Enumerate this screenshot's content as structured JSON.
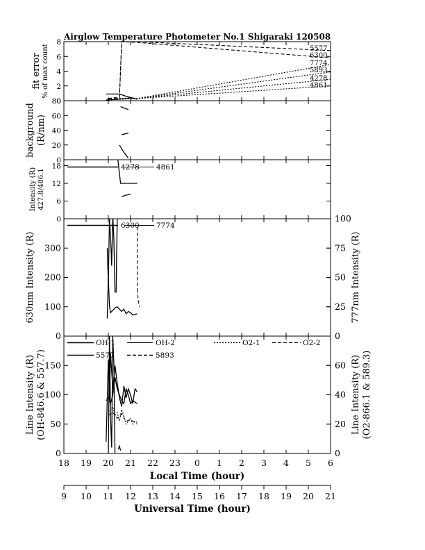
{
  "title": "Airglow Temperature Photometer No.1   Shigaraki   120508",
  "x_axes": {
    "local": {
      "label": "Local Time (hour)",
      "ticks": [
        "18",
        "19",
        "20",
        "21",
        "22",
        "23",
        "0",
        "1",
        "2",
        "3",
        "4",
        "5",
        "6"
      ]
    },
    "universal": {
      "label": "Universal Time (hour)",
      "ticks": [
        "9",
        "10",
        "11",
        "12",
        "13",
        "14",
        "15",
        "16",
        "17",
        "18",
        "19",
        "20",
        "21"
      ]
    }
  },
  "chart_data": [
    {
      "id": "fit_error",
      "type": "line",
      "ylabel": [
        "fit error",
        "% of max count"
      ],
      "ylim": [
        0,
        8
      ],
      "yticks": [
        "0",
        "2",
        "4",
        "6",
        "8"
      ],
      "xlim": [
        18,
        30
      ],
      "annotations": [
        "5577",
        "6300",
        "7774",
        "5893",
        "4278",
        "4861"
      ],
      "series": [
        {
          "name": "5577",
          "style": "dashed",
          "x": [
            20.0,
            20.5,
            20.6,
            21.3,
            30.0
          ],
          "y": [
            0.3,
            0.5,
            8.0,
            8.0,
            6.8
          ]
        },
        {
          "name": "6300",
          "style": "dashed",
          "x": [
            20.0,
            20.5,
            20.6,
            21.3,
            30.0
          ],
          "y": [
            0.3,
            0.3,
            8.0,
            7.9,
            5.8
          ]
        },
        {
          "name": "7774",
          "style": "dotted",
          "x": [
            20.0,
            20.5,
            21.3,
            30.0
          ],
          "y": [
            0.2,
            0.2,
            0.3,
            4.9
          ]
        },
        {
          "name": "5893",
          "style": "dotted",
          "x": [
            20.0,
            20.5,
            21.3,
            30.0
          ],
          "y": [
            0.2,
            0.3,
            0.3,
            3.9
          ]
        },
        {
          "name": "4278",
          "style": "dotted",
          "x": [
            20.0,
            20.5,
            21.3,
            30.0
          ],
          "y": [
            0.1,
            0.2,
            0.3,
            2.9
          ]
        },
        {
          "name": "4861",
          "style": "dotted",
          "x": [
            20.0,
            20.5,
            21.3,
            30.0
          ],
          "y": [
            0.1,
            0.2,
            0.3,
            2.0
          ]
        },
        {
          "name": "a",
          "style": "solid",
          "x": [
            19.9,
            20.5,
            20.8,
            21.3
          ],
          "y": [
            0.9,
            0.9,
            0.6,
            0.2
          ]
        },
        {
          "name": "b",
          "style": "solid",
          "x": [
            19.9,
            20.5,
            21.0,
            21.3
          ],
          "y": [
            0.1,
            0.2,
            0.4,
            0.2
          ]
        }
      ]
    },
    {
      "id": "background",
      "type": "line",
      "ylabel": [
        "background",
        "(R/nm)"
      ],
      "ylim": [
        0,
        80
      ],
      "yticks": [
        "0",
        "20",
        "40",
        "60",
        "80"
      ],
      "xlim": [
        18,
        30
      ],
      "series": [
        {
          "name": "b1",
          "style": "solid",
          "x": [
            20.55,
            20.9
          ],
          "y": [
            72,
            68
          ]
        },
        {
          "name": "b2",
          "style": "solid",
          "x": [
            20.6,
            20.9
          ],
          "y": [
            34,
            36
          ]
        },
        {
          "name": "b3",
          "style": "solid",
          "x": [
            20.5,
            20.7,
            20.9
          ],
          "y": [
            20,
            10,
            2
          ]
        }
      ]
    },
    {
      "id": "intensity_blue",
      "type": "line",
      "ylabel": [
        "Intensity (R)",
        "427.8/486.1"
      ],
      "ylim": [
        0,
        20
      ],
      "yticks": [
        "0",
        "6",
        "12",
        "18"
      ],
      "xlim": [
        18,
        30
      ],
      "legend": [
        "4278",
        "4861"
      ],
      "series": [
        {
          "name": "4278",
          "style": "solid",
          "x": [
            20.4,
            20.55,
            20.6,
            20.8,
            20.9,
            21.3
          ],
          "y": [
            22,
            12,
            12,
            12,
            12,
            12
          ]
        },
        {
          "name": "4861",
          "style": "solid",
          "x": [
            20.6,
            20.8,
            21.0
          ],
          "y": [
            7.5,
            8,
            8.3
          ]
        }
      ]
    },
    {
      "id": "intensity_630_777",
      "type": "line",
      "ylabel": "630nm Intensity (R)",
      "ylabel_right": "777nm Intensity (R)",
      "ylim": [
        0,
        400
      ],
      "ylim_right": [
        0,
        100
      ],
      "yticks": [
        "0",
        "100",
        "200",
        "300"
      ],
      "yticks_right": [
        "0",
        "25",
        "50",
        "75",
        "100"
      ],
      "xlim": [
        18,
        30
      ],
      "legend": [
        "6300",
        "7774"
      ],
      "series": [
        {
          "name": "6300",
          "style": "solid",
          "x": [
            19.95,
            20.0,
            20.05,
            20.1,
            20.15,
            20.2,
            20.25,
            20.3,
            20.35,
            20.4
          ],
          "y": [
            300,
            180,
            400,
            340,
            240,
            410,
            330,
            150,
            150,
            400
          ]
        },
        {
          "name": "7774",
          "style": "solid",
          "axis": "right",
          "x": [
            19.95,
            20.0,
            20.05,
            20.1,
            20.2,
            20.3,
            20.4,
            20.5,
            20.6,
            20.7,
            20.8,
            20.9,
            21.0,
            21.1,
            21.3
          ],
          "y": [
            15,
            50,
            26,
            20,
            22,
            24,
            25,
            23,
            21,
            23,
            19,
            21,
            20,
            18,
            19
          ]
        },
        {
          "name": "7774b",
          "style": "dashed",
          "axis": "right",
          "x": [
            21.3,
            21.35,
            21.4
          ],
          "y": [
            40,
            30,
            25
          ]
        },
        {
          "name": "7774c",
          "style": "dashed",
          "axis": "right",
          "x": [
            21.3,
            21.3
          ],
          "y": [
            93,
            40
          ]
        }
      ]
    },
    {
      "id": "line_intensity",
      "type": "line",
      "ylabel": [
        "Line Intensity (R)",
        "(OH-846.6 & 557.7)"
      ],
      "ylabel_right": [
        "Line Intensity (R)",
        "(O2-866.1 & 589.3)"
      ],
      "ylim": [
        0,
        200
      ],
      "ylim_right": [
        0,
        80
      ],
      "yticks": [
        "0",
        "50",
        "100",
        "150"
      ],
      "yticks_right": [
        "0",
        "20",
        "40",
        "60"
      ],
      "xlim": [
        18,
        30
      ],
      "legend": [
        "OH-1",
        "OH-2",
        "O2-1",
        "O2-2",
        "5577",
        "5893"
      ],
      "series": [
        {
          "name": "OH-1",
          "style": "solid",
          "x": [
            19.9,
            20.0,
            20.05,
            20.1,
            20.15,
            20.2,
            20.3,
            20.4,
            20.5,
            20.6,
            20.7,
            20.8,
            20.9,
            21.0,
            21.1,
            21.2,
            21.3
          ],
          "y": [
            20,
            160,
            90,
            170,
            140,
            110,
            150,
            120,
            95,
            80,
            115,
            95,
            110,
            100,
            85,
            110,
            105
          ]
        },
        {
          "name": "OH-2",
          "style": "solid",
          "x": [
            19.9,
            20.0,
            20.1,
            20.2,
            20.3,
            20.4,
            20.5,
            20.6,
            20.7,
            20.8,
            20.9,
            21.0,
            21.1,
            21.3
          ],
          "y": [
            90,
            95,
            85,
            100,
            130,
            110,
            100,
            90,
            85,
            110,
            100,
            85,
            90,
            85
          ]
        },
        {
          "name": "O2-1",
          "style": "dotted",
          "axis": "right",
          "x": [
            20.0,
            20.1,
            20.2,
            20.3,
            20.4,
            20.5,
            20.6,
            20.7,
            20.8,
            20.9,
            21.0,
            21.1,
            21.2,
            21.3
          ],
          "y": [
            28,
            30,
            32,
            26,
            28,
            22,
            30,
            25,
            20,
            22,
            24,
            20,
            22,
            21
          ]
        },
        {
          "name": "O2-2",
          "style": "dashed",
          "axis": "right",
          "x": [
            20.0,
            20.2,
            20.4,
            20.6,
            20.8,
            21.0,
            21.2,
            21.3
          ],
          "y": [
            26,
            28,
            24,
            27,
            22,
            23,
            21,
            20
          ]
        },
        {
          "name": "5577",
          "style": "solid",
          "x": [
            20.0,
            20.05,
            20.1,
            20.15,
            20.2,
            20.25,
            20.3
          ],
          "y": [
            0,
            200,
            60,
            10,
            200,
            150,
            0
          ]
        },
        {
          "name": "5893",
          "style": "solid",
          "axis": "right",
          "x": [
            20.45,
            20.5,
            20.55
          ],
          "y": [
            3,
            5,
            2
          ]
        }
      ]
    }
  ]
}
